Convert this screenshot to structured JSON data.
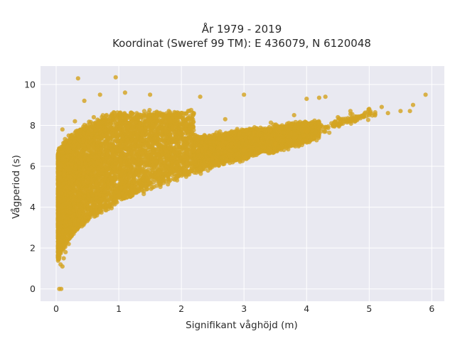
{
  "chart_data": {
    "type": "scatter",
    "title": "År 1979 - 2019",
    "subtitle": "Koordinat (Sweref 99 TM): E 436079, N 6120048",
    "xlabel": "Signifikant våghöjd (m)",
    "ylabel": "Vågperiod (s)",
    "xlim": [
      -0.25,
      6.2
    ],
    "ylim": [
      -0.6,
      10.9
    ],
    "x_ticks": [
      0,
      1,
      2,
      3,
      4,
      5,
      6
    ],
    "y_ticks": [
      0,
      2,
      4,
      6,
      8,
      10
    ],
    "x_tick_labels": [
      "0",
      "1",
      "2",
      "3",
      "4",
      "5",
      "6"
    ],
    "y_tick_labels": [
      "0",
      "2",
      "4",
      "6",
      "8",
      "10"
    ],
    "grid": true,
    "background": "#e9e9f1",
    "marker_color": "#d4a421",
    "series": [
      {
        "points": [
          [
            0.05,
            0.0
          ],
          [
            0.08,
            0.0
          ],
          [
            0.07,
            1.2
          ],
          [
            0.1,
            1.1
          ],
          [
            0.12,
            1.5
          ],
          [
            0.15,
            1.8
          ],
          [
            0.2,
            2.2
          ],
          [
            0.25,
            2.6
          ],
          [
            0.3,
            2.9
          ],
          [
            0.4,
            3.2
          ],
          [
            0.5,
            3.5
          ],
          [
            0.6,
            3.8
          ],
          [
            0.8,
            4.1
          ],
          [
            1.0,
            4.5
          ],
          [
            1.2,
            4.8
          ],
          [
            1.5,
            5.2
          ],
          [
            1.8,
            5.6
          ],
          [
            2.0,
            5.9
          ],
          [
            2.5,
            6.4
          ],
          [
            3.0,
            6.8
          ],
          [
            3.5,
            7.1
          ],
          [
            4.0,
            7.7
          ],
          [
            0.1,
            7.8
          ],
          [
            0.2,
            7.5
          ],
          [
            0.35,
            10.3
          ],
          [
            0.95,
            10.35
          ],
          [
            1.1,
            9.6
          ],
          [
            1.5,
            9.5
          ],
          [
            2.3,
            9.4
          ],
          [
            3.0,
            9.5
          ],
          [
            4.0,
            9.3
          ],
          [
            4.2,
            9.35
          ],
          [
            4.3,
            9.4
          ],
          [
            4.7,
            8.7
          ],
          [
            5.0,
            8.8
          ],
          [
            5.2,
            8.9
          ],
          [
            5.5,
            8.7
          ],
          [
            5.7,
            9.0
          ],
          [
            5.9,
            9.5
          ],
          [
            5.65,
            8.7
          ],
          [
            5.3,
            8.6
          ],
          [
            4.5,
            8.4
          ],
          [
            3.8,
            8.5
          ],
          [
            2.7,
            8.3
          ],
          [
            1.8,
            8.7
          ],
          [
            0.3,
            8.2
          ],
          [
            0.6,
            8.4
          ],
          [
            0.45,
            9.2
          ],
          [
            0.7,
            9.5
          ]
        ]
      }
    ]
  }
}
